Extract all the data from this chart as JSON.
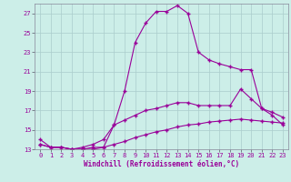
{
  "xlabel": "Windchill (Refroidissement éolien,°C)",
  "xlim": [
    -0.5,
    23.5
  ],
  "ylim": [
    13,
    28
  ],
  "yticks": [
    13,
    15,
    17,
    19,
    21,
    23,
    25,
    27
  ],
  "xticks": [
    0,
    1,
    2,
    3,
    4,
    5,
    6,
    7,
    8,
    9,
    10,
    11,
    12,
    13,
    14,
    15,
    16,
    17,
    18,
    19,
    20,
    21,
    22,
    23
  ],
  "bg_color": "#cceee8",
  "line_color": "#990099",
  "grid_color": "#aacccc",
  "line1_x": [
    0,
    1,
    2,
    3,
    4,
    5,
    6,
    7,
    8,
    9,
    10,
    11,
    12,
    13,
    14,
    15,
    16,
    17,
    18,
    19,
    20,
    21,
    22,
    23
  ],
  "line1_y": [
    14.0,
    13.2,
    13.2,
    13.0,
    13.0,
    13.0,
    13.2,
    15.5,
    19.0,
    24.0,
    26.0,
    27.2,
    27.2,
    27.8,
    27.0,
    23.0,
    22.2,
    21.8,
    21.5,
    21.2,
    21.2,
    17.2,
    16.5,
    15.5
  ],
  "line2_x": [
    0,
    1,
    2,
    3,
    4,
    5,
    6,
    7,
    8,
    9,
    10,
    11,
    12,
    13,
    14,
    15,
    16,
    17,
    18,
    19,
    20,
    21,
    22,
    23
  ],
  "line2_y": [
    13.5,
    13.2,
    13.2,
    13.0,
    13.2,
    13.5,
    14.0,
    15.5,
    16.0,
    16.5,
    17.0,
    17.2,
    17.5,
    17.8,
    17.8,
    17.5,
    17.5,
    17.5,
    17.5,
    19.2,
    18.2,
    17.2,
    16.8,
    16.3
  ],
  "line3_x": [
    0,
    1,
    2,
    3,
    4,
    5,
    6,
    7,
    8,
    9,
    10,
    11,
    12,
    13,
    14,
    15,
    16,
    17,
    18,
    19,
    20,
    21,
    22,
    23
  ],
  "line3_y": [
    13.5,
    13.2,
    13.2,
    13.0,
    13.0,
    13.2,
    13.2,
    13.5,
    13.8,
    14.2,
    14.5,
    14.8,
    15.0,
    15.3,
    15.5,
    15.6,
    15.8,
    15.9,
    16.0,
    16.1,
    16.0,
    15.9,
    15.8,
    15.7
  ]
}
